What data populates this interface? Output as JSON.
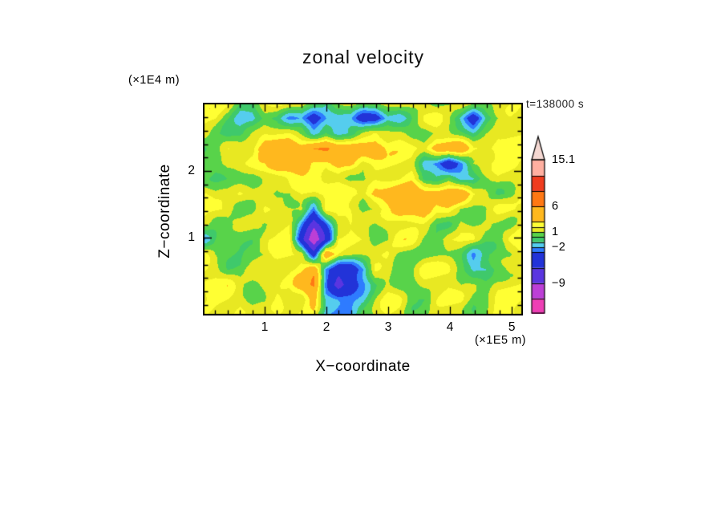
{
  "page": {
    "background": "#FFFFFF"
  },
  "chart_data": {
    "type": "heatmap",
    "title": "zonal velocity",
    "annotation": "t=138000 s",
    "xlabel": "X−coordinate",
    "x_unit": "(×1E5 m)",
    "zlabel": "Z−coordinate",
    "z_unit": "(×1E4 m)",
    "x_range": [
      0,
      5.18
    ],
    "z_range": [
      -0.16,
      3.02
    ],
    "x_major_ticks": [
      1,
      2,
      3,
      4,
      5
    ],
    "z_major_ticks": [
      1,
      2
    ],
    "minor_tick_step": 0.2,
    "levels": [
      -15,
      -12,
      -9,
      -6,
      -3,
      -2,
      -1,
      0,
      1,
      2,
      3,
      6,
      9,
      12,
      15.1
    ],
    "colors": [
      "#EE3FB5",
      "#BC3FD6",
      "#5A35E0",
      "#2233D8",
      "#2E7BFF",
      "#55CDEE",
      "#3FC96B",
      "#58D34A",
      "#E8E822",
      "#FFFF33",
      "#FFB81E",
      "#FF7814",
      "#F03C1E",
      "#FFAFA0"
    ],
    "colorbar": {
      "vmin": -15,
      "vmax": 15.1,
      "tip_color": "#F4D8D2",
      "labels": [
        {
          "value": 15.1,
          "text": "15.1"
        },
        {
          "value": 6,
          "text": "6"
        },
        {
          "value": 1,
          "text": "1"
        },
        {
          "value": -2,
          "text": "−2"
        },
        {
          "value": -9,
          "text": "−9"
        }
      ]
    },
    "field_grid": {
      "values": [
        [
          2,
          2,
          2,
          0.5,
          0.5,
          2,
          2,
          2,
          2,
          0.5,
          -1.5,
          0.5,
          2,
          2,
          2,
          2,
          2,
          2,
          2,
          0.5,
          0.5,
          2,
          2,
          2,
          2,
          2,
          2
        ],
        [
          2,
          2,
          0.5,
          -1.5,
          -1.5,
          0.5,
          0.5,
          -1.5,
          -1.5,
          -5,
          -2.5,
          -1.5,
          -1.5,
          -5,
          -5,
          -1.5,
          -1.5,
          0.5,
          2,
          2,
          0.5,
          -1.5,
          -5,
          -1.5,
          0.5,
          2,
          2
        ],
        [
          2,
          0.5,
          -1.5,
          -1.5,
          0.5,
          2,
          2,
          2,
          0.5,
          -1.5,
          0.5,
          -1.5,
          -1.5,
          0.5,
          2,
          2,
          2,
          0.5,
          0.5,
          2,
          2,
          0.5,
          -1.5,
          0.5,
          2,
          2,
          2
        ],
        [
          0.5,
          0.5,
          2,
          2,
          2,
          4.5,
          4.5,
          4.5,
          4.5,
          7,
          7,
          4.5,
          4.5,
          4.5,
          4.5,
          2,
          2,
          2,
          2,
          4.5,
          4.5,
          4.5,
          2,
          2,
          2,
          2,
          2
        ],
        [
          0.5,
          0.5,
          2,
          2,
          2,
          2,
          4.5,
          4.5,
          4.5,
          2,
          2,
          4.5,
          4.5,
          2,
          2,
          2,
          2,
          2,
          -1.5,
          -2.5,
          -5,
          -1.5,
          2,
          2,
          2,
          2,
          2
        ],
        [
          0.5,
          0.5,
          0.5,
          0.5,
          0.5,
          2,
          2,
          2,
          2,
          2,
          2,
          2,
          0.5,
          0.5,
          2,
          2,
          2,
          2,
          -1.5,
          -1.5,
          0.5,
          -1.5,
          -1.5,
          0.5,
          2,
          2,
          2
        ],
        [
          2,
          0.5,
          0.5,
          2,
          2,
          2,
          0.5,
          0.5,
          2,
          2,
          2,
          2,
          2,
          2,
          4.5,
          4.5,
          4.5,
          4.5,
          4.5,
          4.5,
          4.5,
          4.5,
          2,
          2,
          0.5,
          0.5,
          2
        ],
        [
          2,
          2,
          2,
          0.5,
          0.5,
          2,
          2,
          2,
          2,
          -2.5,
          2,
          2,
          2,
          0.5,
          0.5,
          2,
          4.5,
          4.5,
          4.5,
          2,
          2,
          0.5,
          0.5,
          0.5,
          2,
          2,
          2
        ],
        [
          2,
          0.5,
          0.5,
          0.5,
          0.5,
          0.5,
          2,
          2,
          -2.5,
          -8,
          -2.5,
          2,
          2,
          0.5,
          0.5,
          2,
          2,
          2,
          2,
          0.5,
          0.5,
          2,
          0.5,
          0.5,
          0.5,
          0.5,
          2
        ],
        [
          -1.5,
          0.5,
          0.5,
          0.5,
          0.5,
          2,
          2,
          2,
          -5,
          -11,
          -5,
          2,
          2,
          2,
          0.5,
          0.5,
          2,
          2,
          0.5,
          0.5,
          2,
          2,
          2,
          0.5,
          0.5,
          2,
          2
        ],
        [
          2,
          0.5,
          0.5,
          0.5,
          0.5,
          0.5,
          2,
          2,
          2,
          -5,
          4.5,
          2,
          2,
          2,
          2,
          2,
          0.5,
          0.5,
          0.5,
          0.5,
          0.5,
          0.5,
          -1.5,
          0.5,
          0.5,
          0.5,
          2
        ],
        [
          2,
          2,
          0.5,
          0.5,
          2,
          2,
          2,
          2,
          2,
          4.5,
          -2.5,
          -5,
          -5,
          -2.5,
          2,
          2,
          0.5,
          0.5,
          2,
          2,
          2,
          0.5,
          -1.5,
          -1.5,
          0.5,
          2,
          2
        ],
        [
          2,
          2,
          2,
          0.5,
          0.5,
          2,
          2,
          2,
          4.5,
          7,
          -2.5,
          -8,
          -5,
          -2.5,
          0.5,
          2,
          0.5,
          0.5,
          2,
          2,
          2,
          0.5,
          0.5,
          0.5,
          2,
          2,
          2
        ],
        [
          2,
          2,
          2,
          2,
          0.5,
          0.5,
          2,
          2,
          2,
          4.5,
          -1.5,
          -2.5,
          -2.5,
          -1.5,
          0.5,
          2,
          2,
          0.5,
          0.5,
          2,
          2,
          2,
          0.5,
          0.5,
          2,
          2,
          2
        ],
        [
          2,
          2,
          2,
          2,
          0.5,
          0.5,
          2,
          2,
          2,
          2,
          -1.5,
          -1.5,
          -1.5,
          0.5,
          0.5,
          2,
          2,
          0.5,
          0.5,
          2,
          2,
          2,
          0.5,
          0.5,
          2,
          2,
          2
        ]
      ]
    }
  }
}
